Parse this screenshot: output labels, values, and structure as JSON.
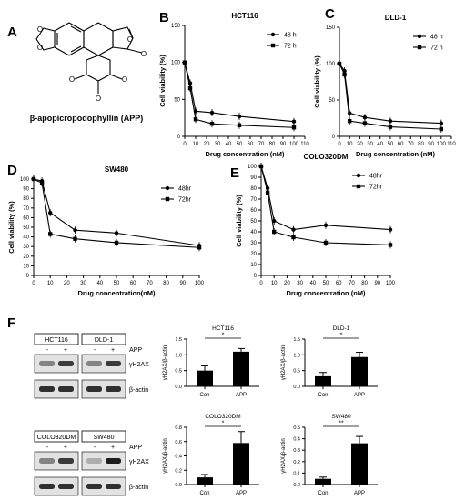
{
  "panel_labels": [
    "A",
    "B",
    "C",
    "D",
    "E",
    "F"
  ],
  "compound": {
    "caption": "β-apopicropodophyllin (APP)"
  },
  "western": {
    "groups": [
      {
        "lines": [
          "HCT116",
          "DLD-1"
        ],
        "treatment_label": "APP",
        "signs": [
          "-",
          "+",
          "-",
          "+"
        ],
        "bands": [
          "γH2AX",
          "β-actin"
        ]
      },
      {
        "lines": [
          "COLO320DM",
          "SW480"
        ],
        "treatment_label": "APP",
        "signs": [
          "-",
          "+",
          "-",
          "+"
        ],
        "bands": [
          "γH2AX",
          "β-actin"
        ]
      }
    ]
  },
  "chart_data": [
    {
      "id": "B",
      "type": "line",
      "title": "HCT116",
      "xlabel": "Drug concentration (nM)",
      "ylabel": "Cell viability (%)",
      "xlim": [
        0,
        110
      ],
      "ylim": [
        0,
        150
      ],
      "xticks": [
        "0",
        "10",
        "20",
        "30",
        "40",
        "50",
        "60",
        "70",
        "80",
        "90",
        "100",
        "110"
      ],
      "yticks": [
        "0",
        "50",
        "100",
        "150"
      ],
      "legend_position": "top-right",
      "x": [
        0,
        5,
        10,
        25,
        50,
        100
      ],
      "series": [
        {
          "name": "48 h",
          "marker": "circle",
          "values": [
            100,
            72,
            34,
            32,
            27,
            20
          ]
        },
        {
          "name": "72 h",
          "marker": "square",
          "values": [
            100,
            65,
            23,
            17,
            15,
            12
          ]
        }
      ]
    },
    {
      "id": "C",
      "type": "line",
      "title": "DLD-1",
      "xlabel": "Drug concentration (nM)",
      "ylabel": "Cell viability (%)",
      "xlim": [
        0,
        110
      ],
      "ylim": [
        0,
        150
      ],
      "xticks": [
        "0",
        "10",
        "20",
        "30",
        "40",
        "50",
        "60",
        "70",
        "80",
        "90",
        "100",
        "110"
      ],
      "yticks": [
        "0",
        "50",
        "100",
        "150"
      ],
      "legend_position": "top-right",
      "x": [
        0,
        5,
        10,
        25,
        50,
        100
      ],
      "series": [
        {
          "name": "48 h",
          "marker": "circle",
          "values": [
            100,
            90,
            32,
            26,
            21,
            18
          ]
        },
        {
          "name": "72 h",
          "marker": "square",
          "values": [
            100,
            85,
            21,
            18,
            13,
            10
          ]
        }
      ]
    },
    {
      "id": "D",
      "type": "line",
      "title": "SW480",
      "xlabel": "Drug concentration(nM)",
      "ylabel": "Cell viability (%)",
      "xlim": [
        0,
        100
      ],
      "ylim": [
        0,
        100
      ],
      "xticks": [
        "0",
        "10",
        "20",
        "30",
        "40",
        "50",
        "60",
        "70",
        "80",
        "90",
        "100"
      ],
      "yticks": [
        "0",
        "10",
        "20",
        "30",
        "40",
        "50",
        "60",
        "70",
        "80",
        "90",
        "100"
      ],
      "legend_position": "top-right",
      "x": [
        0,
        5,
        10,
        25,
        50,
        100
      ],
      "series": [
        {
          "name": "48hr",
          "marker": "circle",
          "values": [
            100,
            98,
            65,
            47,
            44,
            31
          ]
        },
        {
          "name": "72hr",
          "marker": "square",
          "values": [
            100,
            96,
            43,
            38,
            34,
            29
          ]
        }
      ]
    },
    {
      "id": "E",
      "type": "line",
      "title": "COLO320DM",
      "xlabel": "Drug concentration (nM)",
      "ylabel": "Cell viability (%)",
      "xlim": [
        0,
        100
      ],
      "ylim": [
        0,
        100
      ],
      "xticks": [
        "0",
        "10",
        "20",
        "30",
        "40",
        "50",
        "60",
        "70",
        "80",
        "90",
        "100"
      ],
      "yticks": [
        "0",
        "10",
        "20",
        "30",
        "40",
        "50",
        "60",
        "70",
        "80",
        "90",
        "100"
      ],
      "legend_position": "top-right",
      "x": [
        0,
        5,
        10,
        25,
        50,
        100
      ],
      "series": [
        {
          "name": "48hr",
          "marker": "circle",
          "values": [
            100,
            80,
            50,
            42,
            46,
            42
          ]
        },
        {
          "name": "72hr",
          "marker": "square",
          "values": [
            100,
            76,
            40,
            35,
            30,
            28
          ]
        }
      ]
    },
    {
      "id": "F1",
      "type": "bar",
      "title": "HCT116",
      "ylabel": "γH2AX/β-actin",
      "categories": [
        "Con",
        "APP"
      ],
      "values": [
        0.5,
        1.1
      ],
      "errors": [
        0.15,
        0.1
      ],
      "ylim": [
        0,
        1.5
      ],
      "yticks": [
        "0.0",
        "0.5",
        "1.0",
        "1.5"
      ],
      "significance": "*"
    },
    {
      "id": "F2",
      "type": "bar",
      "title": "DLD-1",
      "ylabel": "γH2AX/β-actin",
      "categories": [
        "Con",
        "APP"
      ],
      "values": [
        0.32,
        0.93
      ],
      "errors": [
        0.12,
        0.15
      ],
      "ylim": [
        0,
        1.5
      ],
      "yticks": [
        "0.0",
        "0.5",
        "1.0",
        "1.5"
      ],
      "significance": "*"
    },
    {
      "id": "F3",
      "type": "bar",
      "title": "COLO320DM",
      "ylabel": "γH2AX/β-actin",
      "categories": [
        "Con",
        "APP"
      ],
      "values": [
        0.1,
        0.58
      ],
      "errors": [
        0.04,
        0.16
      ],
      "ylim": [
        0,
        0.8
      ],
      "yticks": [
        "0.0",
        "0.2",
        "0.4",
        "0.6",
        "0.8"
      ],
      "significance": "*"
    },
    {
      "id": "F4",
      "type": "bar",
      "title": "SW480",
      "ylabel": "γH2AX/β-actin",
      "categories": [
        "Con",
        "APP"
      ],
      "values": [
        0.05,
        0.36
      ],
      "errors": [
        0.015,
        0.06
      ],
      "ylim": [
        0,
        0.5
      ],
      "yticks": [
        "0.0",
        "0.1",
        "0.2",
        "0.3",
        "0.4",
        "0.5"
      ],
      "significance": "**"
    }
  ]
}
